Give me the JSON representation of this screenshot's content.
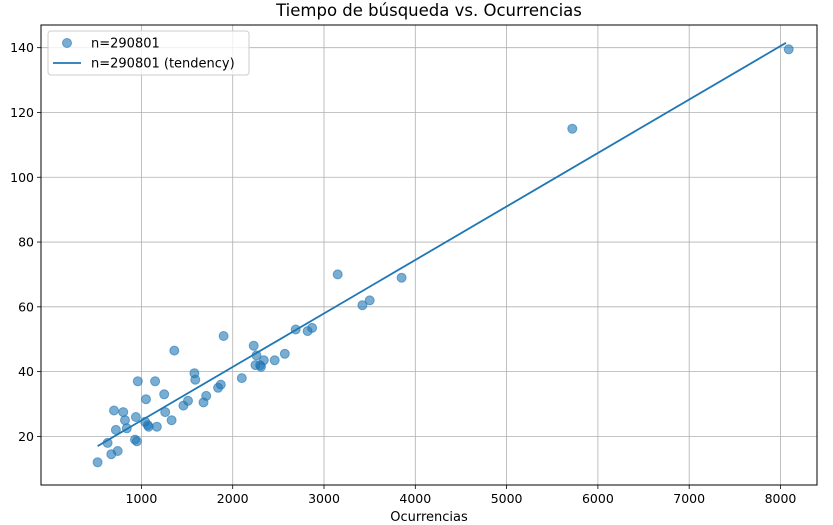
{
  "chart_data": {
    "type": "scatter",
    "title": "Tiempo de búsqueda vs. Ocurrencias",
    "xlabel": "Ocurrencias",
    "ylabel": "",
    "xlim": [
      -100,
      8400
    ],
    "ylim": [
      5,
      147
    ],
    "xticks": [
      1000,
      2000,
      3000,
      4000,
      5000,
      6000,
      7000,
      8000
    ],
    "yticks": [
      20,
      40,
      60,
      80,
      100,
      120,
      140
    ],
    "grid": true,
    "legend_position": "top-left",
    "colors": {
      "series": "#1f77b4"
    },
    "series": [
      {
        "name": "n=290801",
        "type": "scatter",
        "points": [
          [
            520,
            12
          ],
          [
            630,
            18
          ],
          [
            670,
            14.5
          ],
          [
            700,
            28
          ],
          [
            720,
            22
          ],
          [
            740,
            15.5
          ],
          [
            800,
            27.5
          ],
          [
            820,
            25
          ],
          [
            840,
            22.5
          ],
          [
            930,
            19
          ],
          [
            940,
            26
          ],
          [
            950,
            18.5
          ],
          [
            960,
            37
          ],
          [
            1040,
            24.5
          ],
          [
            1050,
            31.5
          ],
          [
            1070,
            23.5
          ],
          [
            1080,
            23
          ],
          [
            1150,
            37
          ],
          [
            1170,
            23
          ],
          [
            1250,
            33
          ],
          [
            1260,
            27.5
          ],
          [
            1330,
            25
          ],
          [
            1360,
            46.5
          ],
          [
            1460,
            29.5
          ],
          [
            1510,
            31
          ],
          [
            1580,
            39.5
          ],
          [
            1590,
            37.5
          ],
          [
            1680,
            30.5
          ],
          [
            1710,
            32.5
          ],
          [
            1840,
            35
          ],
          [
            1870,
            36
          ],
          [
            1900,
            51
          ],
          [
            2100,
            38
          ],
          [
            2230,
            48
          ],
          [
            2250,
            42
          ],
          [
            2260,
            45
          ],
          [
            2300,
            42
          ],
          [
            2310,
            41.5
          ],
          [
            2340,
            43.5
          ],
          [
            2460,
            43.5
          ],
          [
            2570,
            45.5
          ],
          [
            2690,
            53
          ],
          [
            2820,
            52.5
          ],
          [
            2870,
            53.5
          ],
          [
            3150,
            70
          ],
          [
            3420,
            60.5
          ],
          [
            3500,
            62
          ],
          [
            3850,
            69
          ],
          [
            5720,
            115
          ],
          [
            8090,
            139.5
          ]
        ]
      },
      {
        "name": "n=290801 (tendency)",
        "type": "line",
        "points": [
          [
            520,
            17
          ],
          [
            8060,
            141.5
          ]
        ]
      }
    ]
  }
}
